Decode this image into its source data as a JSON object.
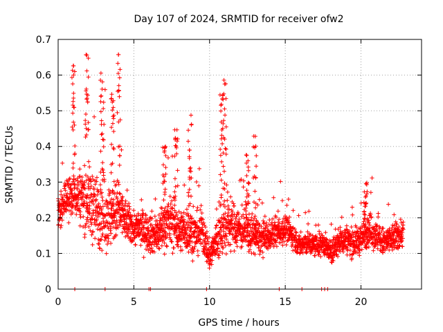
{
  "chart_data": {
    "type": "scatter",
    "title": "Day 107 of 2024, SRMTID for receiver ofw2",
    "xlabel": "GPS time / hours",
    "ylabel": "SRMTID / TECUs",
    "xlim": [
      0,
      24
    ],
    "ylim": [
      0,
      0.7
    ],
    "xticks": [
      0,
      5,
      10,
      15,
      20
    ],
    "xtick_labels": [
      "0",
      "5",
      "10",
      "15",
      "20"
    ],
    "yticks": [
      0,
      0.1,
      0.2,
      0.3,
      0.4,
      0.5,
      0.6,
      0.7
    ],
    "ytick_labels": [
      "0",
      "0.1",
      "0.2",
      "0.3",
      "0.4",
      "0.5",
      "0.6",
      "0.7"
    ],
    "grid": true,
    "marker": "+",
    "color": "#ff0000",
    "series": [
      {
        "name": "SRMTID",
        "profile": {
          "x": [
            0,
            0.5,
            1,
            1.5,
            2,
            2.5,
            3,
            3.5,
            4,
            4.5,
            5,
            5.5,
            6,
            6.5,
            7,
            7.5,
            8,
            8.5,
            9,
            9.5,
            10,
            10.5,
            11,
            11.5,
            12,
            12.5,
            13,
            13.5,
            14,
            14.5,
            15,
            15.5,
            16,
            16.5,
            17,
            17.5,
            18,
            18.5,
            19,
            19.5,
            20,
            20.5,
            21,
            21.5,
            22,
            22.5,
            22.8
          ],
          "median": [
            0.21,
            0.25,
            0.27,
            0.26,
            0.25,
            0.22,
            0.22,
            0.2,
            0.22,
            0.19,
            0.17,
            0.17,
            0.16,
            0.15,
            0.18,
            0.19,
            0.16,
            0.17,
            0.15,
            0.17,
            0.09,
            0.14,
            0.17,
            0.18,
            0.17,
            0.16,
            0.15,
            0.14,
            0.15,
            0.16,
            0.17,
            0.15,
            0.12,
            0.13,
            0.12,
            0.13,
            0.1,
            0.13,
            0.14,
            0.13,
            0.14,
            0.17,
            0.15,
            0.13,
            0.14,
            0.15,
            0.16
          ],
          "spread": [
            0.06,
            0.07,
            0.08,
            0.1,
            0.12,
            0.13,
            0.13,
            0.11,
            0.1,
            0.07,
            0.06,
            0.06,
            0.07,
            0.07,
            0.08,
            0.09,
            0.07,
            0.08,
            0.07,
            0.08,
            0.05,
            0.08,
            0.09,
            0.08,
            0.07,
            0.07,
            0.06,
            0.06,
            0.05,
            0.05,
            0.05,
            0.04,
            0.04,
            0.04,
            0.04,
            0.04,
            0.04,
            0.05,
            0.05,
            0.05,
            0.05,
            0.06,
            0.05,
            0.05,
            0.05,
            0.05,
            0.05
          ]
        },
        "peaks": [
          {
            "x": 1.0,
            "y": 0.63
          },
          {
            "x": 1.9,
            "y": 0.68
          },
          {
            "x": 2.9,
            "y": 0.61
          },
          {
            "x": 4.0,
            "y": 0.66
          },
          {
            "x": 3.6,
            "y": 0.56
          },
          {
            "x": 7.0,
            "y": 0.4
          },
          {
            "x": 7.8,
            "y": 0.45
          },
          {
            "x": 8.7,
            "y": 0.51
          },
          {
            "x": 10.8,
            "y": 0.55
          },
          {
            "x": 11.0,
            "y": 0.59
          },
          {
            "x": 12.5,
            "y": 0.39
          },
          {
            "x": 13.0,
            "y": 0.43
          },
          {
            "x": 20.3,
            "y": 0.3
          }
        ],
        "zero_points_x": [
          1.1,
          3.1,
          6.0,
          6.1,
          9.8,
          14.6,
          16.1,
          17.4,
          17.6,
          17.8
        ]
      }
    ]
  }
}
